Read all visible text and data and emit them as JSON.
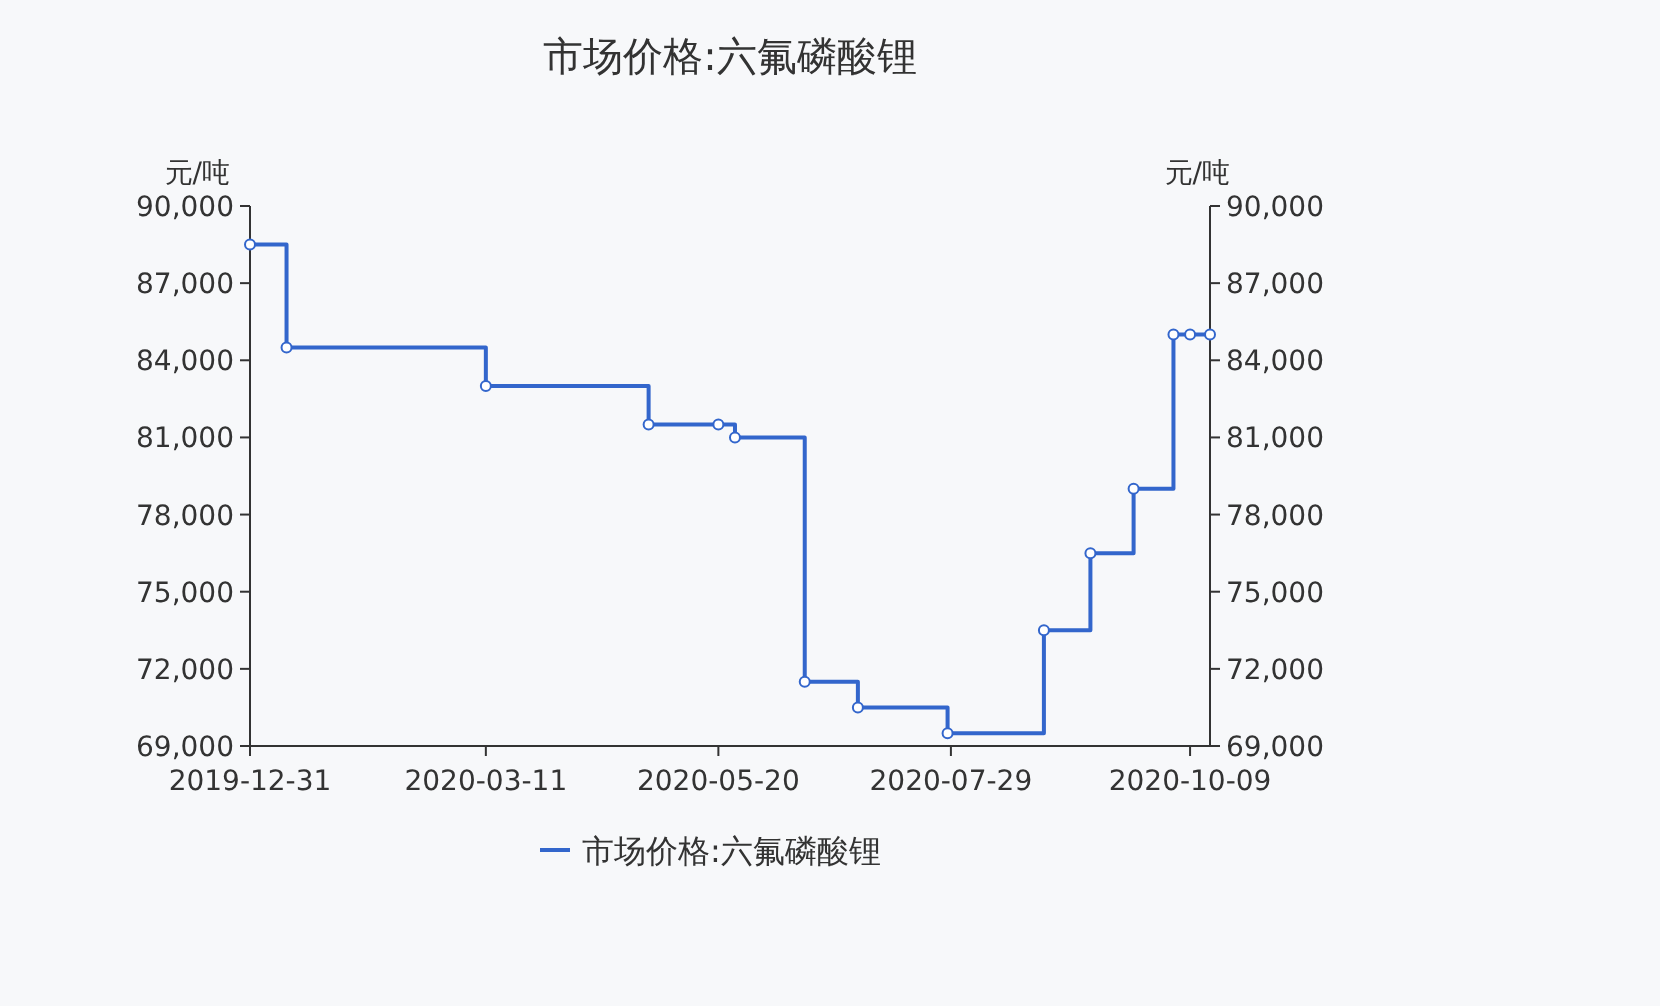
{
  "chart_data": {
    "type": "step",
    "title": "市场价格:六氟磷酸锂",
    "ylabel": "元/吨",
    "y2label": "元/吨",
    "x": [
      "2019-12-31",
      "2020-01-11",
      "2020-03-11",
      "2020-04-29",
      "2020-05-20",
      "2020-05-25",
      "2020-06-15",
      "2020-07-01",
      "2020-07-28",
      "2020-08-26",
      "2020-09-09",
      "2020-09-22",
      "2020-10-04",
      "2020-10-09",
      "2020-10-15"
    ],
    "series": [
      {
        "name": "市场价格:六氟磷酸锂",
        "color": "#3366cc",
        "values": [
          88500,
          84500,
          83000,
          81500,
          81500,
          81000,
          71500,
          70500,
          69500,
          73500,
          76500,
          79000,
          85000,
          85000,
          85000
        ]
      }
    ],
    "xlim": [
      "2019-12-31",
      "2020-10-15"
    ],
    "xticks": [
      "2019-12-31",
      "2020-03-11",
      "2020-05-20",
      "2020-07-29",
      "2020-10-09"
    ],
    "ylim": [
      69000,
      90000
    ],
    "yticks": [
      {
        "value": 69000,
        "label": "69,000"
      },
      {
        "value": 72000,
        "label": "72,000"
      },
      {
        "value": 75000,
        "label": "75,000"
      },
      {
        "value": 78000,
        "label": "78,000"
      },
      {
        "value": 81000,
        "label": "81,000"
      },
      {
        "value": 84000,
        "label": "84,000"
      },
      {
        "value": 87000,
        "label": "87,000"
      },
      {
        "value": 90000,
        "label": "90,000"
      }
    ],
    "y2lim": [
      69000,
      90000
    ],
    "y2ticks": [
      {
        "value": 69000,
        "label": "69,000"
      },
      {
        "value": 72000,
        "label": "72,000"
      },
      {
        "value": 75000,
        "label": "75,000"
      },
      {
        "value": 78000,
        "label": "78,000"
      },
      {
        "value": 81000,
        "label": "81,000"
      },
      {
        "value": 84000,
        "label": "84,000"
      },
      {
        "value": 87000,
        "label": "87,000"
      },
      {
        "value": 90000,
        "label": "90,000"
      }
    ],
    "marker": "circle",
    "legend": "bottom",
    "grid": false
  }
}
